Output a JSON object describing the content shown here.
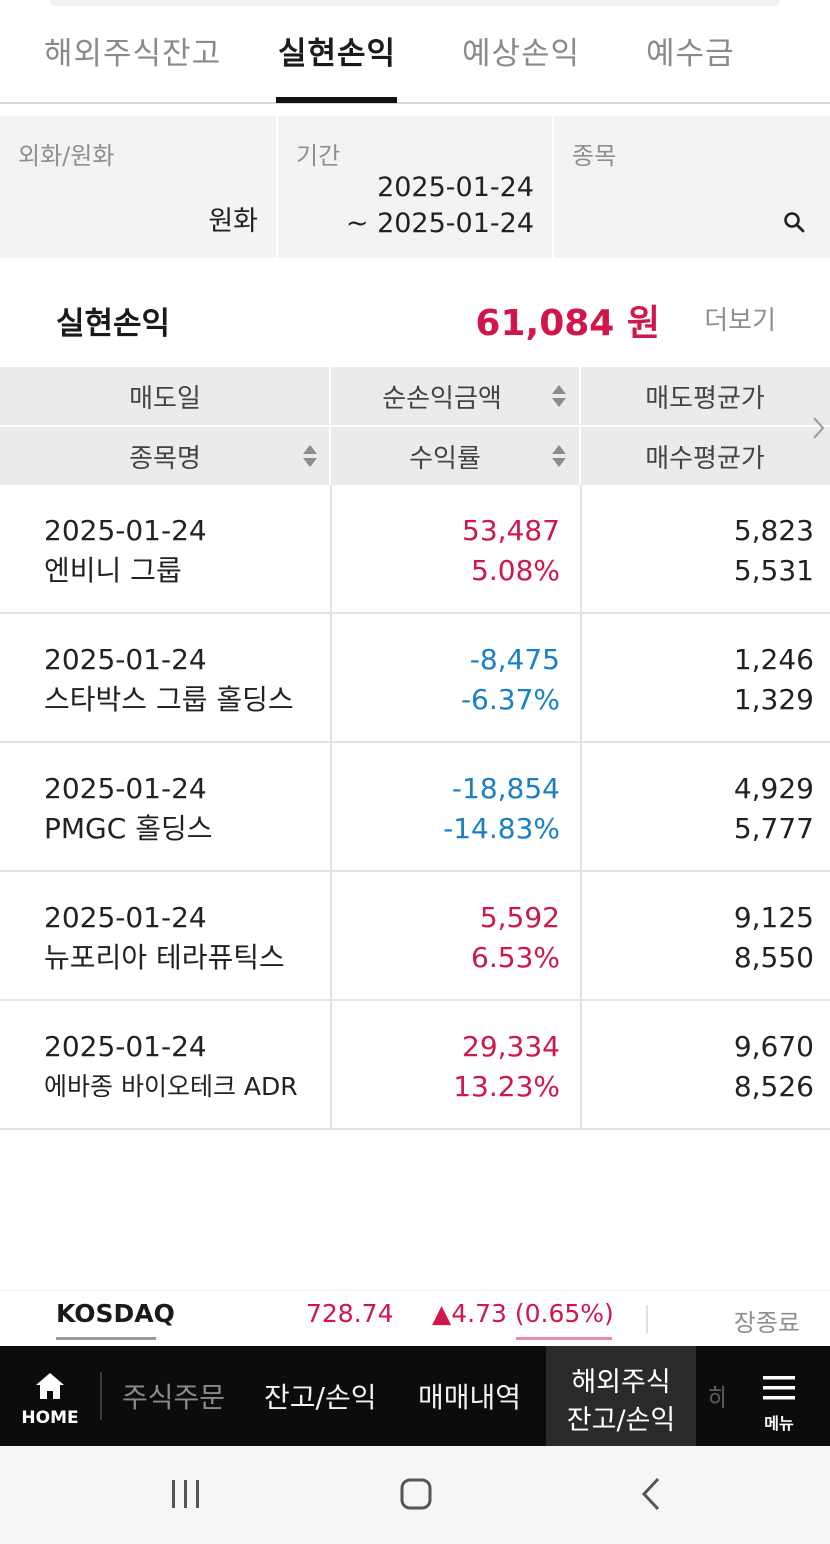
{
  "tabs": [
    {
      "label": "해외주식잔고",
      "active": false
    },
    {
      "label": "실현손익",
      "active": true
    },
    {
      "label": "예상손익",
      "active": false
    },
    {
      "label": "예수금",
      "active": false
    }
  ],
  "filter": {
    "currency": {
      "label": "외화/원화",
      "value": "원화"
    },
    "period": {
      "label": "기간",
      "start": "2025-01-24",
      "end": "~ 2025-01-24"
    },
    "stock": {
      "label": "종목",
      "icon": "search-icon"
    }
  },
  "summary": {
    "label": "실현손익",
    "value": "61,084 원",
    "more_label": "더보기"
  },
  "table": {
    "headers": {
      "sell_date": "매도일",
      "net_profit": "순손익금액",
      "sell_avg": "매도평균가",
      "stock_name": "종목명",
      "return_rate": "수익률",
      "buy_avg": "매수평균가"
    },
    "rows": [
      {
        "date": "2025-01-24",
        "name": "엔비니 그룹",
        "profit": "53,487",
        "rate": "5.08%",
        "sell_avg": "5,823",
        "buy_avg": "5,531",
        "trend": "up"
      },
      {
        "date": "2025-01-24",
        "name": "스타박스 그룹 홀딩스",
        "profit": "-8,475",
        "rate": "-6.37%",
        "sell_avg": "1,246",
        "buy_avg": "1,329",
        "trend": "down"
      },
      {
        "date": "2025-01-24",
        "name": "PMGC 홀딩스",
        "profit": "-18,854",
        "rate": "-14.83%",
        "sell_avg": "4,929",
        "buy_avg": "5,777",
        "trend": "down"
      },
      {
        "date": "2025-01-24",
        "name": "뉴포리아 테라퓨틱스",
        "profit": "5,592",
        "rate": "6.53%",
        "sell_avg": "9,125",
        "buy_avg": "8,550",
        "trend": "up"
      },
      {
        "date": "2025-01-24",
        "name": "에바종 바이오테크 ADR",
        "profit": "29,334",
        "rate": "13.23%",
        "sell_avg": "9,670",
        "buy_avg": "8,526",
        "trend": "up"
      }
    ]
  },
  "ticker": {
    "name": "KOSDAQ",
    "value": "728.74",
    "change": "▲4.73 (0.65%)",
    "status": "장종료"
  },
  "bottom_nav": {
    "home": "HOME",
    "items": [
      "주식주문",
      "잔고/손익",
      "매매내역"
    ],
    "active_line1": "해외주식",
    "active_line2": "잔고/손익",
    "menu": "메뉴"
  },
  "colors": {
    "up": "#d0174a",
    "down": "#1a7fc4",
    "header_bg": "#ebebeb",
    "filter_bg": "#f3f3f3",
    "nav_bg": "#0c0c0c"
  }
}
